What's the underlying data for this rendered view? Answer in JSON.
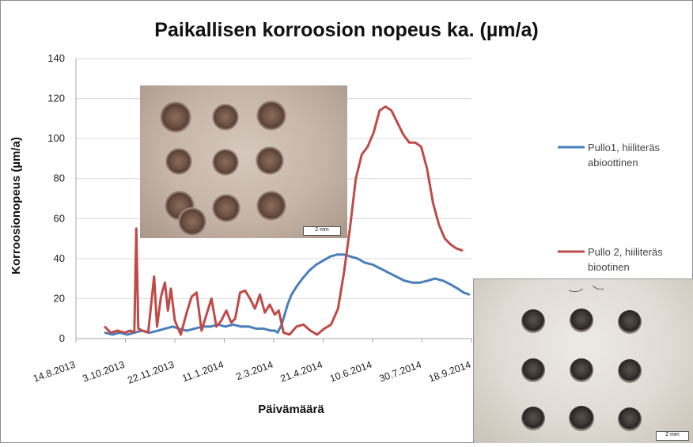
{
  "chart_data": {
    "type": "line",
    "title": "Paikallisen  korroosion nopeus ka. (µm/a)",
    "xlabel": "Päivämäärä",
    "ylabel": "Korroosionopeus (µm/a)",
    "ylim": [
      0,
      140
    ],
    "yticks": [
      0,
      20,
      40,
      60,
      80,
      100,
      120,
      140
    ],
    "xlim": [
      "2013-08-14",
      "2014-09-18"
    ],
    "xticks": [
      "14.8.2013",
      "3.10.2013",
      "22.11.2013",
      "11.1.2014",
      "2.3.2014",
      "21.4.2014",
      "10.6.2014",
      "30.7.2014",
      "18.9.2014"
    ],
    "grid": "horizontal",
    "legend": "right",
    "series": [
      {
        "name": "Pullo1, hiiliteräs abioottinen",
        "color": "#4a7ebb",
        "points": [
          [
            "2013-09-12",
            3
          ],
          [
            "2013-09-20",
            2
          ],
          [
            "2013-09-27",
            3
          ],
          [
            "2013-10-05",
            2
          ],
          [
            "2013-10-12",
            3
          ],
          [
            "2013-10-20",
            4
          ],
          [
            "2013-10-28",
            3
          ],
          [
            "2013-11-05",
            4
          ],
          [
            "2013-11-12",
            5
          ],
          [
            "2013-11-20",
            6
          ],
          [
            "2013-11-26",
            5
          ],
          [
            "2013-12-04",
            4
          ],
          [
            "2013-12-12",
            5
          ],
          [
            "2013-12-20",
            6
          ],
          [
            "2013-12-28",
            6
          ],
          [
            "2014-01-05",
            7
          ],
          [
            "2014-01-12",
            6
          ],
          [
            "2014-01-20",
            7
          ],
          [
            "2014-01-28",
            6
          ],
          [
            "2014-02-05",
            6
          ],
          [
            "2014-02-12",
            5
          ],
          [
            "2014-02-20",
            5
          ],
          [
            "2014-02-27",
            4
          ],
          [
            "2014-03-03",
            4
          ],
          [
            "2014-03-06",
            3
          ],
          [
            "2014-03-10",
            7
          ],
          [
            "2014-03-13",
            12
          ],
          [
            "2014-03-16",
            17
          ],
          [
            "2014-03-20",
            22
          ],
          [
            "2014-03-25",
            26
          ],
          [
            "2014-03-31",
            30
          ],
          [
            "2014-04-07",
            34
          ],
          [
            "2014-04-14",
            37
          ],
          [
            "2014-04-21",
            39
          ],
          [
            "2014-04-28",
            41
          ],
          [
            "2014-05-05",
            42
          ],
          [
            "2014-05-12",
            42
          ],
          [
            "2014-05-19",
            41
          ],
          [
            "2014-05-26",
            40
          ],
          [
            "2014-06-02",
            38
          ],
          [
            "2014-06-10",
            37
          ],
          [
            "2014-06-18",
            35
          ],
          [
            "2014-06-26",
            33
          ],
          [
            "2014-07-04",
            31
          ],
          [
            "2014-07-12",
            29
          ],
          [
            "2014-07-20",
            28
          ],
          [
            "2014-07-28",
            28
          ],
          [
            "2014-08-05",
            29
          ],
          [
            "2014-08-12",
            30
          ],
          [
            "2014-08-20",
            29
          ],
          [
            "2014-08-28",
            27
          ],
          [
            "2014-09-04",
            25
          ],
          [
            "2014-09-10",
            23
          ],
          [
            "2014-09-16",
            22
          ]
        ]
      },
      {
        "name": "Pullo 2, hiiliteräs biootinen",
        "color": "#be4b48",
        "points": [
          [
            "2013-09-12",
            6
          ],
          [
            "2013-09-18",
            3
          ],
          [
            "2013-09-25",
            4
          ],
          [
            "2013-10-02",
            3
          ],
          [
            "2013-10-08",
            4
          ],
          [
            "2013-10-12",
            3
          ],
          [
            "2013-10-14",
            55
          ],
          [
            "2013-10-16",
            5
          ],
          [
            "2013-10-20",
            4
          ],
          [
            "2013-10-26",
            3
          ],
          [
            "2013-11-01",
            31
          ],
          [
            "2013-11-04",
            6
          ],
          [
            "2013-11-08",
            21
          ],
          [
            "2013-11-12",
            28
          ],
          [
            "2013-11-15",
            14
          ],
          [
            "2013-11-18",
            25
          ],
          [
            "2013-11-22",
            9
          ],
          [
            "2013-11-28",
            2
          ],
          [
            "2013-12-04",
            13
          ],
          [
            "2013-12-09",
            21
          ],
          [
            "2013-12-14",
            23
          ],
          [
            "2013-12-19",
            4
          ],
          [
            "2013-12-24",
            12
          ],
          [
            "2013-12-29",
            20
          ],
          [
            "2014-01-03",
            6
          ],
          [
            "2014-01-08",
            9
          ],
          [
            "2014-01-13",
            14
          ],
          [
            "2014-01-18",
            8
          ],
          [
            "2014-01-22",
            10
          ],
          [
            "2014-01-27",
            23
          ],
          [
            "2014-02-01",
            24
          ],
          [
            "2014-02-06",
            20
          ],
          [
            "2014-02-11",
            15
          ],
          [
            "2014-02-16",
            22
          ],
          [
            "2014-02-21",
            13
          ],
          [
            "2014-02-26",
            17
          ],
          [
            "2014-03-03",
            12
          ],
          [
            "2014-03-07",
            14
          ],
          [
            "2014-03-12",
            3
          ],
          [
            "2014-03-18",
            2
          ],
          [
            "2014-03-25",
            6
          ],
          [
            "2014-04-01",
            7
          ],
          [
            "2014-04-08",
            4
          ],
          [
            "2014-04-15",
            2
          ],
          [
            "2014-04-22",
            5
          ],
          [
            "2014-04-29",
            7
          ],
          [
            "2014-05-06",
            15
          ],
          [
            "2014-05-12",
            33
          ],
          [
            "2014-05-18",
            55
          ],
          [
            "2014-05-24",
            80
          ],
          [
            "2014-05-30",
            92
          ],
          [
            "2014-06-05",
            96
          ],
          [
            "2014-06-11",
            103
          ],
          [
            "2014-06-17",
            114
          ],
          [
            "2014-06-23",
            116
          ],
          [
            "2014-06-29",
            114
          ],
          [
            "2014-07-05",
            108
          ],
          [
            "2014-07-11",
            102
          ],
          [
            "2014-07-17",
            98
          ],
          [
            "2014-07-23",
            98
          ],
          [
            "2014-07-29",
            96
          ],
          [
            "2014-08-04",
            85
          ],
          [
            "2014-08-10",
            68
          ],
          [
            "2014-08-16",
            57
          ],
          [
            "2014-08-22",
            50
          ],
          [
            "2014-08-28",
            47
          ],
          [
            "2014-09-03",
            45
          ],
          [
            "2014-09-09",
            44
          ]
        ]
      }
    ],
    "legend_entries": [
      {
        "line1": "Pullo1, hiiliteräs",
        "line2": "abioottinen",
        "color": "#4a7ebb"
      },
      {
        "line1": "Pullo 2, hiiliteräs",
        "line2": "biootinen",
        "color": "#be4b48"
      }
    ]
  },
  "images": [
    {
      "scale_label": "2 mm"
    },
    {
      "scale_label": "2 mm"
    }
  ]
}
